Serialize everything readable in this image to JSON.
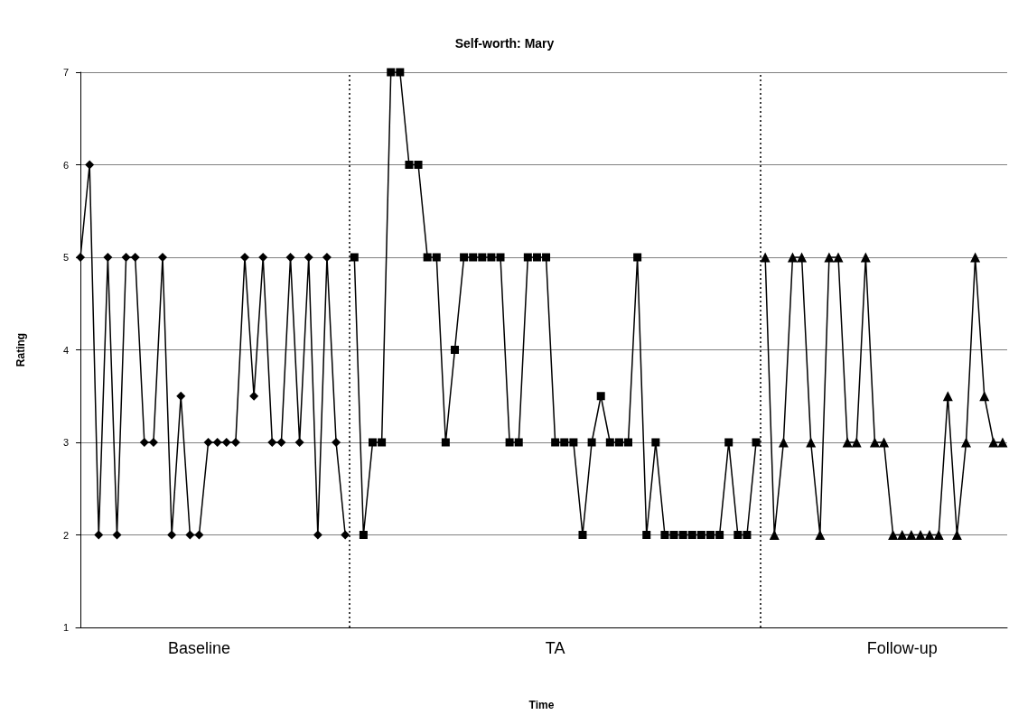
{
  "chart_data": {
    "type": "line",
    "title": "Self-worth: Mary",
    "xlabel": "Time",
    "ylabel": "Rating",
    "categories": [
      null,
      null,
      null,
      null,
      null,
      null,
      null,
      null,
      null,
      null,
      null,
      null,
      null,
      "Baseline",
      null,
      null,
      null,
      null,
      null,
      null,
      null,
      null,
      null,
      null,
      null,
      null,
      null,
      null,
      null,
      null,
      null,
      null,
      null,
      null,
      null,
      null,
      null,
      null,
      null,
      null,
      null,
      null,
      null,
      null,
      null,
      null,
      null,
      null,
      null,
      null,
      null,
      null,
      "TA",
      null,
      null,
      null,
      null,
      null,
      null,
      null,
      null,
      null,
      null,
      null,
      null,
      null,
      null,
      null,
      null,
      null,
      null,
      null,
      null,
      null,
      null,
      null,
      null,
      null,
      null,
      null,
      null,
      null,
      null,
      null,
      null,
      null,
      null,
      null,
      null,
      null,
      "Follow-up",
      null,
      null,
      null,
      null,
      null,
      null,
      null,
      null,
      null,
      null,
      null
    ],
    "ylim": [
      1,
      7
    ],
    "yticks": [
      1,
      2,
      3,
      4,
      5,
      6,
      7
    ],
    "grid": "y",
    "series": [
      {
        "color": "#000000",
        "marker": "diamond",
        "values": [
          5,
          6,
          2,
          5,
          2,
          5,
          5,
          3,
          3,
          5,
          2,
          3.5,
          2,
          2,
          3,
          3,
          3,
          3,
          5,
          3.5,
          5,
          3,
          3,
          5,
          3,
          5,
          2,
          5,
          3,
          2,
          null,
          null,
          null,
          null,
          null,
          null,
          null,
          null,
          null,
          null,
          null,
          null,
          null,
          null,
          null,
          null,
          null,
          null,
          null,
          null,
          null,
          null,
          null,
          null,
          null,
          null,
          null,
          null,
          null,
          null,
          null,
          null,
          null,
          null,
          null,
          null,
          null,
          null,
          null,
          null,
          null,
          null,
          null,
          null,
          null,
          null,
          null,
          null,
          null,
          null,
          null,
          null,
          null,
          null,
          null,
          null,
          null,
          null,
          null,
          null,
          null,
          null,
          null,
          null,
          null,
          null,
          null,
          null,
          null,
          null,
          null,
          null
        ]
      },
      {
        "color": "#000000",
        "marker": "square",
        "values": [
          null,
          null,
          null,
          null,
          null,
          null,
          null,
          null,
          null,
          null,
          null,
          null,
          null,
          null,
          null,
          null,
          null,
          null,
          null,
          null,
          null,
          null,
          null,
          null,
          null,
          null,
          null,
          null,
          null,
          null,
          5,
          2,
          3,
          3,
          7,
          7,
          6,
          6,
          5,
          5,
          3,
          4,
          5,
          5,
          5,
          5,
          5,
          3,
          3,
          5,
          5,
          5,
          3,
          3,
          3,
          2,
          3,
          3.5,
          3,
          3,
          3,
          5,
          2,
          3,
          2,
          2,
          2,
          2,
          2,
          2,
          2,
          3,
          2,
          2,
          3,
          null,
          null,
          null,
          null,
          null,
          null,
          null,
          null,
          null,
          null,
          null,
          null,
          null,
          null,
          null,
          null,
          null,
          null,
          null,
          null,
          null,
          null,
          null,
          null,
          null,
          null,
          null
        ]
      },
      {
        "color": "#000000",
        "marker": "triangle",
        "values": [
          null,
          null,
          null,
          null,
          null,
          null,
          null,
          null,
          null,
          null,
          null,
          null,
          null,
          null,
          null,
          null,
          null,
          null,
          null,
          null,
          null,
          null,
          null,
          null,
          null,
          null,
          null,
          null,
          null,
          null,
          null,
          null,
          null,
          null,
          null,
          null,
          null,
          null,
          null,
          null,
          null,
          null,
          null,
          null,
          null,
          null,
          null,
          null,
          null,
          null,
          null,
          null,
          null,
          null,
          null,
          null,
          null,
          null,
          null,
          null,
          null,
          null,
          null,
          null,
          null,
          null,
          null,
          null,
          null,
          null,
          null,
          null,
          null,
          null,
          null,
          5,
          2,
          3,
          5,
          5,
          3,
          2,
          5,
          5,
          3,
          3,
          5,
          3,
          3,
          2,
          2,
          2,
          2,
          2,
          2,
          3.5,
          2,
          3,
          5,
          3.5,
          3,
          3
        ]
      }
    ]
  }
}
